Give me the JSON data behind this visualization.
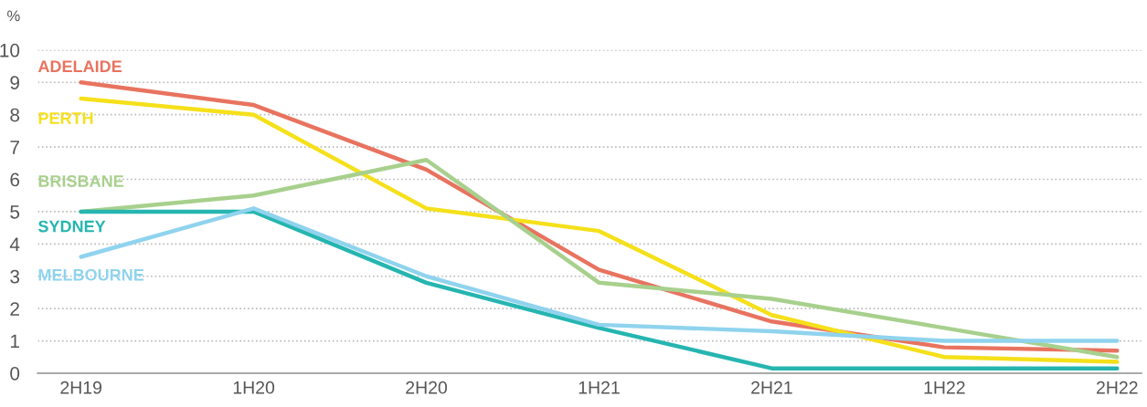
{
  "chart_data": {
    "type": "line",
    "ylabel": "%",
    "categories": [
      "2H19",
      "1H20",
      "2H20",
      "1H21",
      "2H21",
      "1H22",
      "2H22"
    ],
    "series": [
      {
        "name": "ADELAIDE",
        "color": "#e8735f",
        "values": [
          9.0,
          8.3,
          6.3,
          3.2,
          1.6,
          0.8,
          0.7
        ]
      },
      {
        "name": "PERTH",
        "color": "#f5e01a",
        "values": [
          8.5,
          8.0,
          5.1,
          4.4,
          1.8,
          0.5,
          0.35
        ]
      },
      {
        "name": "BRISBANE",
        "color": "#a8d08d",
        "values": [
          5.0,
          5.5,
          6.6,
          2.8,
          2.3,
          1.4,
          0.5
        ]
      },
      {
        "name": "SYDNEY",
        "color": "#26b5b0",
        "values": [
          5.0,
          5.0,
          2.8,
          1.4,
          0.15,
          0.15,
          0.15
        ]
      },
      {
        "name": "MELBOURNE",
        "color": "#8fd3ee",
        "values": [
          3.6,
          5.1,
          3.0,
          1.5,
          1.3,
          1.0,
          1.0
        ]
      }
    ],
    "ylim": [
      0,
      10
    ],
    "yticks": [
      0,
      1,
      2,
      3,
      4,
      5,
      6,
      7,
      8,
      9,
      10
    ],
    "grid": "y",
    "line_style": "solid"
  }
}
